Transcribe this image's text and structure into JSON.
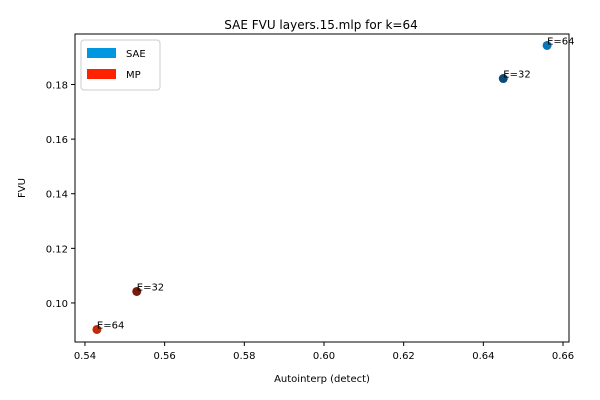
{
  "chart_data": {
    "type": "scatter",
    "title": "SAE FVU layers.15.mlp for k=64",
    "xlabel": "Autointerp (detect)",
    "ylabel": "FVU",
    "xlim": [
      0.5375,
      0.6615
    ],
    "ylim": [
      0.0857,
      0.1985
    ],
    "xticks": [
      0.54,
      0.56,
      0.58,
      0.6,
      0.62,
      0.64,
      0.66
    ],
    "xtick_labels": [
      "0.54",
      "0.56",
      "0.58",
      "0.60",
      "0.62",
      "0.64",
      "0.66"
    ],
    "yticks": [
      0.1,
      0.12,
      0.14,
      0.16,
      0.18
    ],
    "ytick_labels": [
      "0.10",
      "0.12",
      "0.14",
      "0.16",
      "0.18"
    ],
    "grid": false,
    "legend_position": "top-left",
    "series": [
      {
        "name": "SAE",
        "legend_color": "#0096e0",
        "points": [
          {
            "x": 0.645,
            "y": 0.1822,
            "label": "E=32",
            "color": "#0a4c78"
          },
          {
            "x": 0.656,
            "y": 0.1943,
            "label": "E=64",
            "color": "#0a75b8"
          }
        ]
      },
      {
        "name": "MP",
        "legend_color": "#ff2200",
        "points": [
          {
            "x": 0.553,
            "y": 0.1042,
            "label": "E=32",
            "color": "#7a1a08"
          },
          {
            "x": 0.543,
            "y": 0.0903,
            "label": "E=64",
            "color": "#c22a08"
          }
        ]
      }
    ]
  }
}
